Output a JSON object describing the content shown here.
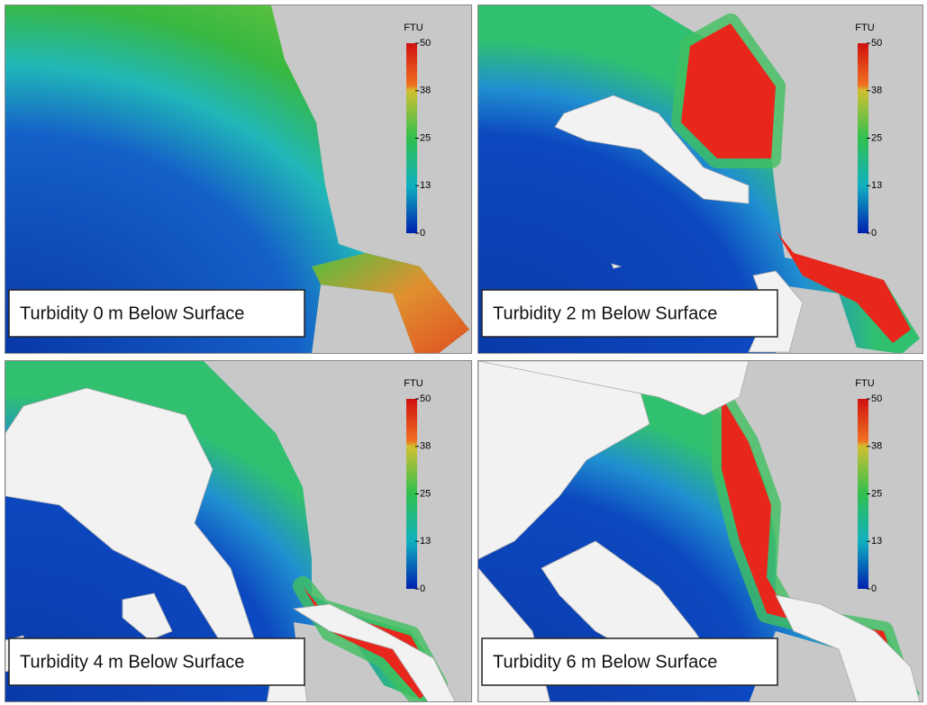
{
  "panels": [
    {
      "label": "Turbidity 0 m Below Surface",
      "colorbar": {
        "unit": "FTU",
        "ticks": [
          50,
          38,
          25,
          13,
          0
        ]
      }
    },
    {
      "label": "Turbidity 2 m Below Surface",
      "colorbar": {
        "unit": "FTU",
        "ticks": [
          50,
          38,
          25,
          13,
          0
        ]
      }
    },
    {
      "label": "Turbidity 4 m Below Surface",
      "colorbar": {
        "unit": "FTU",
        "ticks": [
          50,
          38,
          25,
          13,
          0
        ]
      }
    },
    {
      "label": "Turbidity 6 m Below Surface",
      "colorbar": {
        "unit": "FTU",
        "ticks": [
          50,
          38,
          25,
          13,
          0
        ]
      }
    }
  ]
}
